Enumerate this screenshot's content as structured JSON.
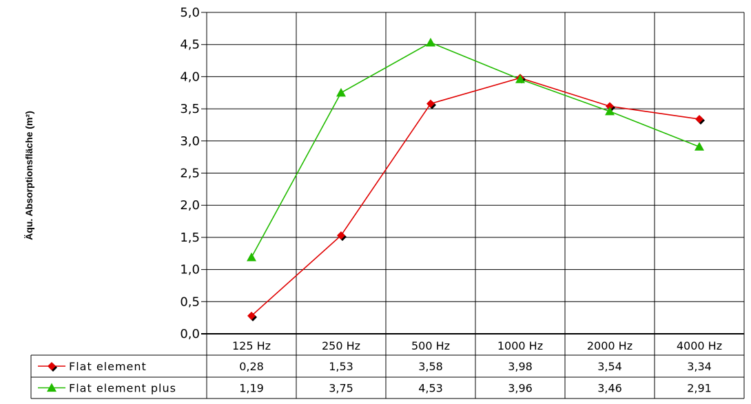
{
  "chart_data": {
    "type": "line",
    "title": "",
    "xlabel": "",
    "ylabel": "Äqu. Absorptionsfläche (m²)",
    "categories": [
      "125 Hz",
      "250 Hz",
      "500 Hz",
      "1000 Hz",
      "2000 Hz",
      "4000 Hz"
    ],
    "ylim": [
      0,
      5
    ],
    "yticks": [
      "0,0",
      "0,5",
      "1,0",
      "1,5",
      "2,0",
      "2,5",
      "3,0",
      "3,5",
      "4,0",
      "4,5",
      "5,0"
    ],
    "grid": true,
    "legend": "data-table-below",
    "series": [
      {
        "name": "Flat element",
        "color": "#e00000",
        "marker": "diamond",
        "values": [
          0.28,
          1.53,
          3.58,
          3.98,
          3.54,
          3.34
        ],
        "labels": [
          "0,28",
          "1,53",
          "3,58",
          "3,98",
          "3,54",
          "3,34"
        ]
      },
      {
        "name": "Flat element plus",
        "color": "#22bb00",
        "marker": "triangle",
        "values": [
          1.19,
          3.75,
          4.53,
          3.96,
          3.46,
          2.91
        ],
        "labels": [
          "1,19",
          "3,75",
          "4,53",
          "3,96",
          "3,46",
          "2,91"
        ]
      }
    ]
  }
}
